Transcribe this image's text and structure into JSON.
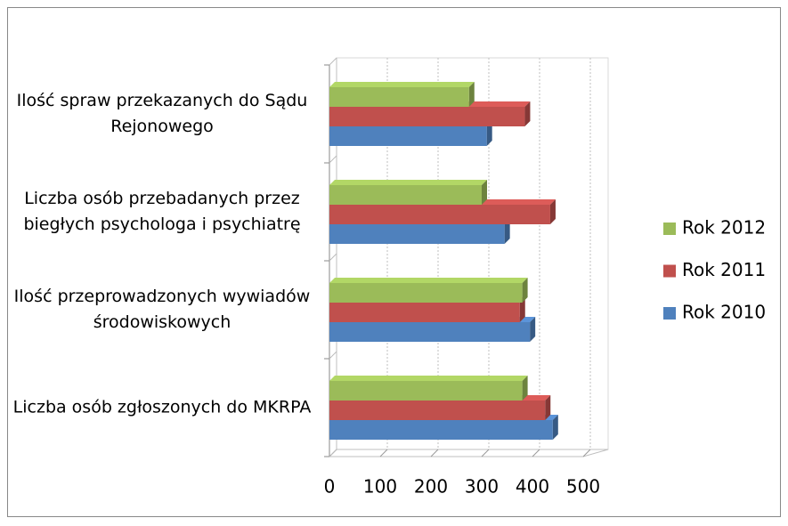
{
  "chart_data": {
    "type": "bar",
    "orientation": "horizontal",
    "categories": [
      "Liczba osób zgłoszonych do MKRPA",
      "Ilość przeprowadzonych wywiadów środowiskowych",
      "Liczba osób przebadanych przez biegłych psychologa i psychiatrę",
      "Ilość spraw przekazanych do Sądu Rejonowego"
    ],
    "series": [
      {
        "name": "Rok 2010",
        "color": "#4f81bd",
        "values": [
          440,
          395,
          345,
          310
        ]
      },
      {
        "name": "Rok 2011",
        "color": "#c0504d",
        "values": [
          425,
          375,
          435,
          385
        ]
      },
      {
        "name": "Rok 2012",
        "color": "#9bbb59",
        "values": [
          380,
          380,
          300,
          275
        ]
      }
    ],
    "xlim": [
      0,
      500
    ],
    "xticks": [
      0,
      100,
      200,
      300,
      400,
      500
    ],
    "grid": true,
    "legend": "right"
  }
}
